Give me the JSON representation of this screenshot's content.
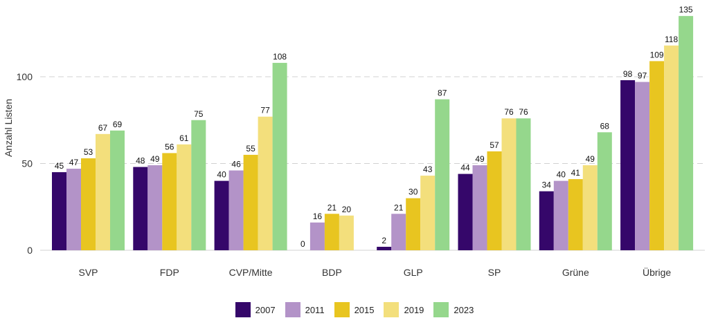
{
  "chart_data": {
    "type": "bar",
    "ylabel": "Anzahl Listen",
    "ylim": [
      0,
      140
    ],
    "yticks": [
      0,
      50,
      100
    ],
    "grid": true,
    "legend_position": "bottom",
    "categories": [
      "SVP",
      "FDP",
      "CVP/Mitte",
      "BDP",
      "GLP",
      "SP",
      "Grüne",
      "Übrige"
    ],
    "series": [
      {
        "name": "2007",
        "color": "#35076a",
        "values": [
          45,
          48,
          40,
          0,
          2,
          44,
          34,
          98
        ]
      },
      {
        "name": "2011",
        "color": "#b393c8",
        "values": [
          47,
          49,
          46,
          16,
          21,
          49,
          40,
          97
        ]
      },
      {
        "name": "2015",
        "color": "#e8c520",
        "values": [
          53,
          56,
          55,
          21,
          30,
          57,
          41,
          109
        ]
      },
      {
        "name": "2019",
        "color": "#f3df7c",
        "values": [
          67,
          61,
          77,
          20,
          43,
          76,
          49,
          118
        ]
      },
      {
        "name": "2023",
        "color": "#95d78c",
        "values": [
          69,
          75,
          108,
          null,
          87,
          76,
          68,
          135
        ]
      }
    ]
  }
}
